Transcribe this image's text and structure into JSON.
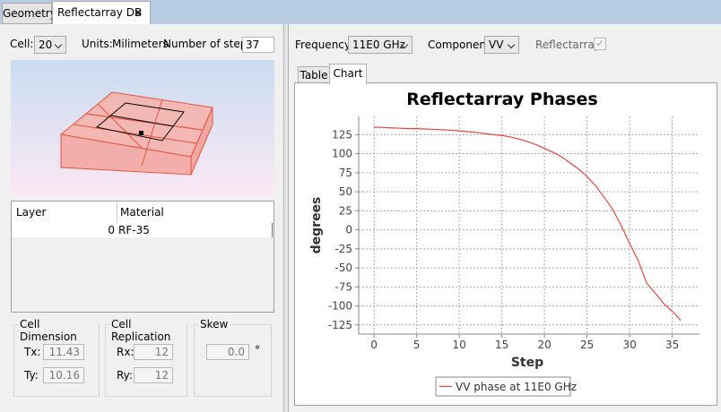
{
  "tabs": {
    "geometry": "Geometry",
    "reflectarray_db": "Reflectarray DB",
    "close": "×"
  },
  "left": {
    "cell_label": "Cell:",
    "cell_value": "20",
    "units_label": "Units:",
    "units_value": "Milimeters",
    "steps_label": "Number of steps:",
    "steps_value": "37",
    "table": {
      "headers": [
        "Layer",
        "Material"
      ],
      "rows": [
        [
          "0",
          "RF-35"
        ]
      ]
    },
    "cell_dimension": {
      "title": "Cell Dimension",
      "tx_label": "Tx:",
      "tx": "11.43",
      "ty_label": "Ty:",
      "ty": "10.16"
    },
    "cell_replication": {
      "title": "Cell Replication",
      "rx_label": "Rx:",
      "rx": "12",
      "ry_label": "Ry:",
      "ry": "12"
    },
    "skew": {
      "title": "Skew",
      "value": "0.0",
      "unit": "°"
    }
  },
  "right": {
    "frequency_label": "Frequency:",
    "frequency_value": "11E0 GHz",
    "component_label": "Component:",
    "component_value": "VV",
    "reflectarray_label": "Reflectarray",
    "view_tabs": [
      "Table",
      "Chart"
    ]
  },
  "chart_data": {
    "type": "line",
    "title": "Reflectarray Phases",
    "x_label": "Step",
    "y_label": "degrees",
    "x": [
      0,
      1,
      2,
      3,
      4,
      5,
      6,
      7,
      8,
      9,
      10,
      11,
      12,
      13,
      14,
      15,
      16,
      17,
      18,
      19,
      20,
      21,
      22,
      23,
      24,
      25,
      26,
      27,
      28,
      29,
      30,
      31,
      32,
      33,
      34,
      35,
      36
    ],
    "series": [
      {
        "name": "VV phase at 11E0 GHz",
        "color": "#e8463c",
        "values": [
          135,
          134.5,
          134,
          133.5,
          133,
          133,
          132.5,
          132,
          131.5,
          131,
          130,
          129,
          128,
          126.5,
          125,
          124,
          122,
          119.5,
          116,
          112,
          107,
          102,
          96,
          88,
          80,
          70,
          58,
          43,
          27,
          6,
          -18,
          -40,
          -70,
          -83,
          -97,
          -107,
          -119
        ]
      }
    ],
    "xlim": [
      -1.8,
      38.2
    ],
    "ylim": [
      -137,
      149
    ],
    "xticks": [
      0,
      5,
      10,
      15,
      20,
      25,
      30,
      35
    ],
    "yticks": [
      -125,
      -100,
      -75,
      -50,
      -25,
      0,
      25,
      50,
      75,
      100,
      125
    ],
    "grid": true,
    "legend": "bottom"
  }
}
